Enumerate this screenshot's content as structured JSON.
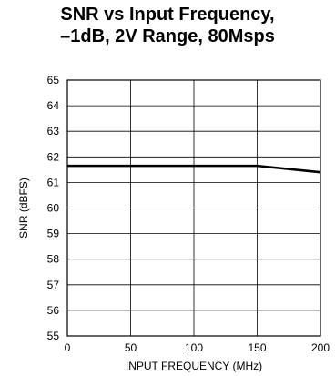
{
  "chart_data": {
    "type": "line",
    "title_lines": [
      "SNR vs Input Frequency,",
      "–1dB, 2V Range, 80Msps"
    ],
    "xlabel": "INPUT FREQUENCY (MHz)",
    "ylabel": "SNR (dBFS)",
    "xlim": [
      0,
      200
    ],
    "ylim": [
      55,
      65
    ],
    "xticks": [
      0,
      50,
      100,
      150,
      200
    ],
    "yticks": [
      55,
      56,
      57,
      58,
      59,
      60,
      61,
      62,
      63,
      64,
      65
    ],
    "grid": true,
    "series": [
      {
        "x": [
          0,
          150,
          200
        ],
        "y": [
          61.65,
          61.65,
          61.4
        ]
      }
    ]
  }
}
